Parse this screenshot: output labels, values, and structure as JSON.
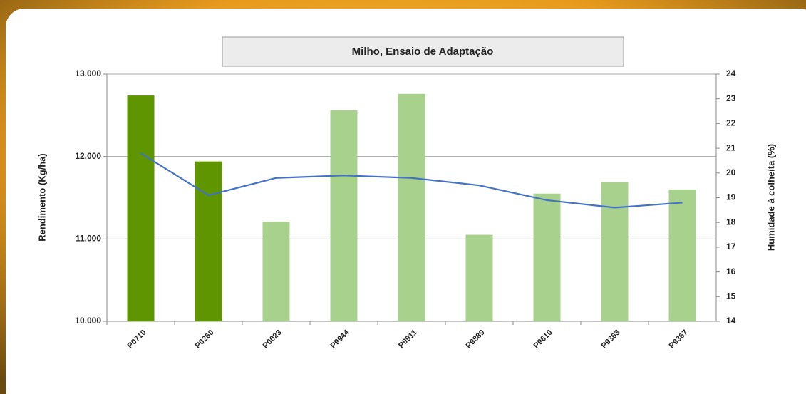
{
  "chart_data": {
    "type": "combo",
    "title": "Milho, Ensaio  de Adaptação",
    "y_label": "Rendimento (Kg/ha)",
    "y2_label": "Humidade à colheita (%)",
    "categories": [
      "P0710",
      "P0260",
      "P0023",
      "P9944",
      "P9911",
      "P9889",
      "P9610",
      "P9363",
      "P9367"
    ],
    "series": [
      {
        "type": "bar",
        "colors": [
          "#5f9600",
          "#5f9600",
          "#a9d18e",
          "#a9d18e",
          "#a9d18e",
          "#a9d18e",
          "#a9d18e",
          "#a9d18e",
          "#a9d18e"
        ],
        "values": [
          12740,
          11940,
          11210,
          12560,
          12760,
          11050,
          11550,
          11690,
          11600
        ]
      },
      {
        "type": "line",
        "axis": "y2",
        "color": "#4472c4",
        "values": [
          20.8,
          19.1,
          19.8,
          19.9,
          19.8,
          19.5,
          18.9,
          18.6,
          18.8
        ]
      }
    ],
    "ylim": [
      10000,
      13000
    ],
    "yticks": [
      {
        "value": 10000,
        "label": "10.000"
      },
      {
        "value": 11000,
        "label": "11.000"
      },
      {
        "value": 12000,
        "label": "12.000"
      },
      {
        "value": 13000,
        "label": "13.000"
      }
    ],
    "y2lim": [
      14,
      24
    ],
    "y2ticks": [
      14,
      15,
      16,
      17,
      18,
      19,
      20,
      21,
      22,
      23,
      24
    ],
    "grid": true
  }
}
